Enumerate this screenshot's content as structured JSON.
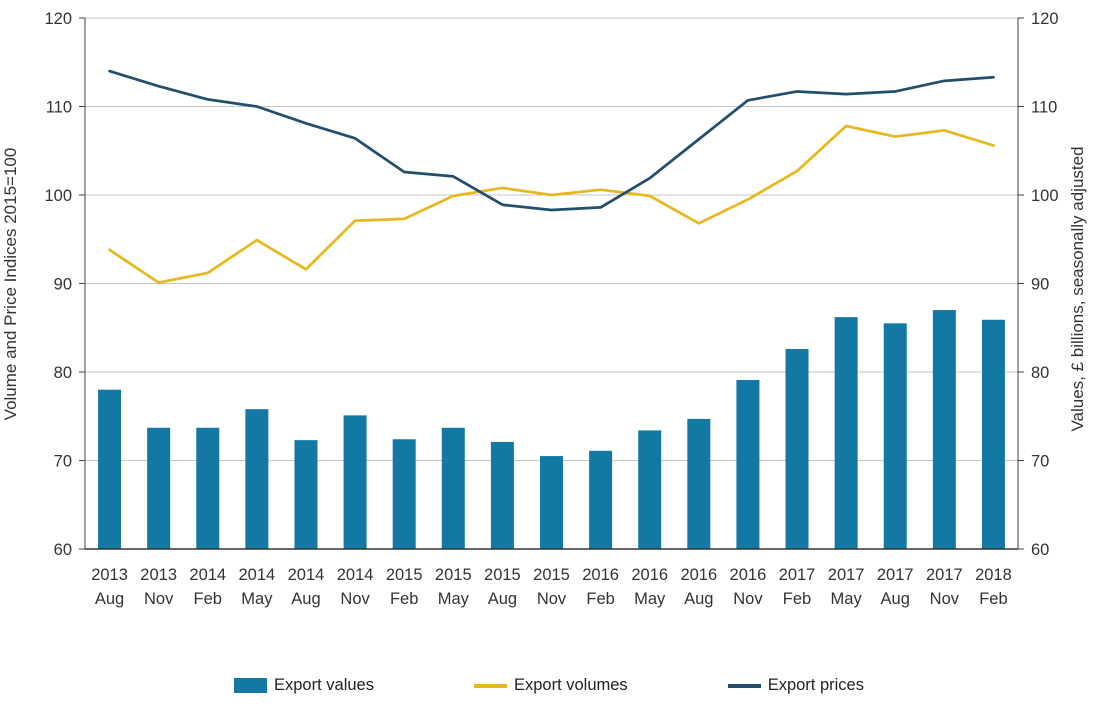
{
  "chart_data": {
    "type": "combo",
    "categories": [
      {
        "year": "2013",
        "month": "Aug"
      },
      {
        "year": "2013",
        "month": "Nov"
      },
      {
        "year": "2014",
        "month": "Feb"
      },
      {
        "year": "2014",
        "month": "May"
      },
      {
        "year": "2014",
        "month": "Aug"
      },
      {
        "year": "2014",
        "month": "Nov"
      },
      {
        "year": "2015",
        "month": "Feb"
      },
      {
        "year": "2015",
        "month": "May"
      },
      {
        "year": "2015",
        "month": "Aug"
      },
      {
        "year": "2015",
        "month": "Nov"
      },
      {
        "year": "2016",
        "month": "Feb"
      },
      {
        "year": "2016",
        "month": "May"
      },
      {
        "year": "2016",
        "month": "Aug"
      },
      {
        "year": "2016",
        "month": "Nov"
      },
      {
        "year": "2017",
        "month": "Feb"
      },
      {
        "year": "2017",
        "month": "May"
      },
      {
        "year": "2017",
        "month": "Aug"
      },
      {
        "year": "2017",
        "month": "Nov"
      },
      {
        "year": "2018",
        "month": "Feb"
      }
    ],
    "series": [
      {
        "name": "Export values",
        "type": "bar",
        "axis": "right",
        "color": "#1378a3",
        "values": [
          78.0,
          73.7,
          73.7,
          75.8,
          72.3,
          75.1,
          72.4,
          73.7,
          72.1,
          70.5,
          71.1,
          73.4,
          74.7,
          79.1,
          82.6,
          86.2,
          85.5,
          87.0,
          85.9
        ]
      },
      {
        "name": "Export volumes",
        "type": "line",
        "axis": "left",
        "color": "#e6b820",
        "values": [
          93.8,
          90.1,
          91.2,
          94.9,
          91.6,
          97.1,
          97.3,
          99.9,
          100.8,
          100.0,
          100.6,
          99.9,
          96.8,
          99.5,
          102.7,
          107.8,
          106.6,
          107.3,
          105.6
        ]
      },
      {
        "name": "Export prices",
        "type": "line",
        "axis": "left",
        "color": "#234f6d",
        "values": [
          114.0,
          112.3,
          110.8,
          110.0,
          108.1,
          106.4,
          102.6,
          102.1,
          98.9,
          98.3,
          98.6,
          101.9,
          106.3,
          110.7,
          111.7,
          111.4,
          111.7,
          112.9,
          113.3
        ]
      }
    ],
    "ylabel_left": "Volume and Price Indices 2015=100",
    "ylabel_right": "Values, £ billions, seasonally adjusted",
    "ylim": [
      60,
      120
    ],
    "yticks": [
      60,
      70,
      80,
      90,
      100,
      110,
      120
    ],
    "grid": true,
    "legend_position": "bottom",
    "colors": {
      "grid": "#c6c6c6",
      "axis": "#404040",
      "baseline": "#333333",
      "text": "#333333"
    }
  }
}
